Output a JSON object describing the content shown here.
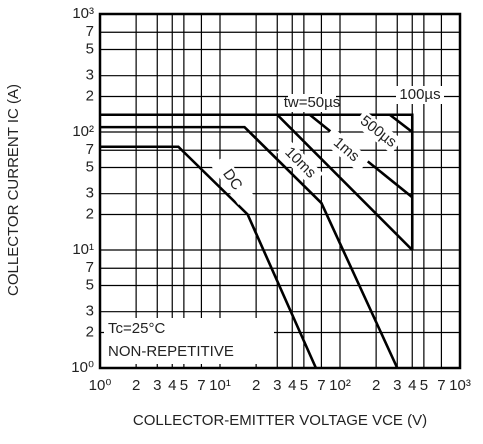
{
  "chart_data": {
    "type": "line",
    "xscale": "log",
    "yscale": "log",
    "grid": true,
    "color": "#000000",
    "xlabel": "COLLECTOR-EMITTER VOLTAGE    VCE (V)",
    "ylabel": "COLLECTOR CURRENT    IC (A)",
    "annotations": [
      "Tc=25°C",
      "NON-REPETITIVE"
    ],
    "xlim": [
      1,
      1000
    ],
    "ylim": [
      1,
      1000
    ],
    "xticks": [
      {
        "value": 1,
        "label": "10⁰"
      },
      2,
      3,
      4,
      5,
      7,
      {
        "value": 10,
        "label": "10¹"
      },
      {
        "value": 20,
        "label": "2"
      },
      {
        "value": 30,
        "label": "3"
      },
      {
        "value": 40,
        "label": "4"
      },
      {
        "value": 50,
        "label": "5"
      },
      {
        "value": 70,
        "label": "7"
      },
      {
        "value": 100,
        "label": "10²"
      },
      {
        "value": 200,
        "label": "2"
      },
      {
        "value": 300,
        "label": "3"
      },
      {
        "value": 400,
        "label": "4"
      },
      {
        "value": 500,
        "label": "5"
      },
      {
        "value": 700,
        "label": "7"
      },
      {
        "value": 1000,
        "label": "10³"
      }
    ],
    "yticks": [
      {
        "value": 1,
        "label": "10⁰"
      },
      2,
      3,
      5,
      7,
      {
        "value": 10,
        "label": "10¹"
      },
      {
        "value": 20,
        "label": "2"
      },
      {
        "value": 30,
        "label": "3"
      },
      {
        "value": 50,
        "label": "5"
      },
      {
        "value": 70,
        "label": "7"
      },
      {
        "value": 100,
        "label": "10²"
      },
      {
        "value": 200,
        "label": "2"
      },
      {
        "value": 300,
        "label": "3"
      },
      {
        "value": 500,
        "label": "5"
      },
      {
        "value": 700,
        "label": "7"
      },
      {
        "value": 1000,
        "label": "10³"
      }
    ],
    "series": [
      {
        "name": "tw=50µs",
        "x": [
          1,
          400,
          400
        ],
        "values": [
          140,
          140,
          10
        ]
      },
      {
        "name": "100µs",
        "x": [
          1,
          260,
          400
        ],
        "values": [
          140,
          140,
          100
        ]
      },
      {
        "name": "500µs",
        "x": [
          1,
          56,
          400
        ],
        "values": [
          140,
          140,
          28
        ]
      },
      {
        "name": "1ms",
        "x": [
          1,
          30,
          400
        ],
        "values": [
          140,
          140,
          10
        ]
      },
      {
        "name": "10ms",
        "x": [
          1,
          16,
          70,
          300
        ],
        "values": [
          110,
          110,
          25,
          1
        ]
      },
      {
        "name": "DC",
        "x": [
          1,
          4.5,
          17,
          63
        ],
        "values": [
          75,
          75,
          20,
          1
        ]
      }
    ]
  }
}
